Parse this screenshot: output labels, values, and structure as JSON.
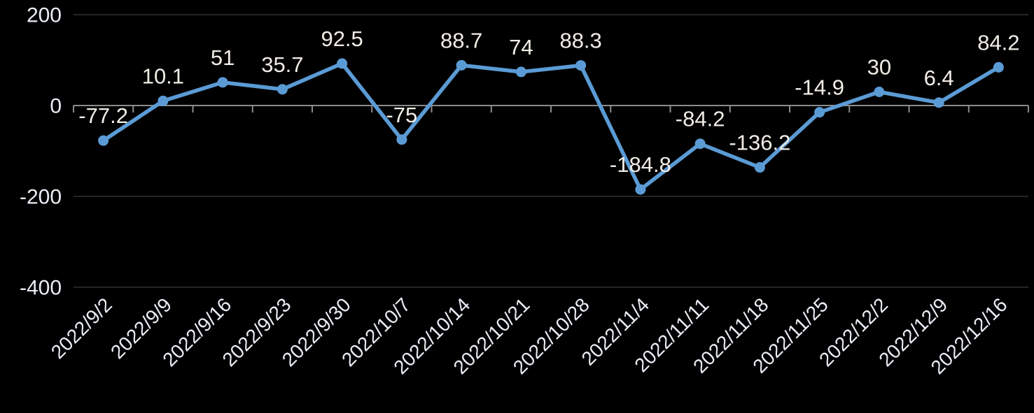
{
  "chart_data": {
    "type": "line",
    "title": "",
    "xlabel": "",
    "ylabel": "",
    "legend": "none",
    "grid": "horizontal-faint",
    "x": [
      "2022/9/2",
      "2022/9/9",
      "2022/9/16",
      "2022/9/23",
      "2022/9/30",
      "2022/10/7",
      "2022/10/14",
      "2022/10/21",
      "2022/10/28",
      "2022/11/4",
      "2022/11/11",
      "2022/11/18",
      "2022/11/25",
      "2022/12/2",
      "2022/12/9",
      "2022/12/16"
    ],
    "series": [
      {
        "name": "series-1",
        "values": [
          -77.2,
          10.1,
          51,
          35.7,
          92.5,
          -75,
          88.7,
          74,
          88.3,
          -184.8,
          -84.2,
          -136.2,
          -14.9,
          30,
          6.4,
          84.2
        ]
      }
    ],
    "point_labels": [
      "-77.2",
      "10.1",
      "51",
      "35.7",
      "92.5",
      "-75",
      "88.7",
      "74",
      "88.3",
      "-184.8",
      "-84.2",
      "-136.2",
      "-14.9",
      "30",
      "6.4",
      "84.2"
    ],
    "yticks": [
      200,
      0,
      -200,
      -400
    ],
    "ylim": [
      -400,
      200
    ],
    "colors": {
      "background": "#000000",
      "line": "#5B9BD5",
      "marker": "#5B9BD5",
      "axis_line": "#8C8C8C",
      "gridline": "#242424",
      "data_label": "#F1EDE6",
      "axis_label": "#E9EDF4"
    }
  }
}
